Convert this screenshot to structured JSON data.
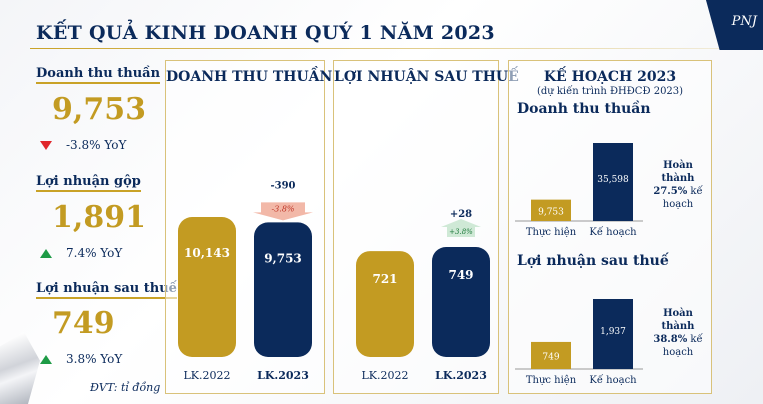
{
  "page": {
    "title": "KẾT QUẢ KINH DOANH QUÝ 1 NĂM 2023",
    "logo": "PNJ",
    "unit_note": "ĐVT: tỉ đồng"
  },
  "kpis": [
    {
      "label": "Doanh thu thuần",
      "value": "9,753",
      "change": "-3.8% YoY",
      "direction": "down"
    },
    {
      "label": "Lợi nhuận gộp",
      "value": "1,891",
      "change": "7.4% YoY",
      "direction": "up"
    },
    {
      "label": "Lợi nhuận sau thuế",
      "value": "749",
      "change": "3.8% YoY",
      "direction": "up"
    }
  ],
  "colors": {
    "navy": "#0b2a5b",
    "gold": "#c39b22",
    "down": "#e0262b",
    "up": "#1e9b46"
  },
  "chart_data": [
    {
      "type": "bar",
      "title": "DOANH THU THUẦN",
      "categories": [
        "LK.2022",
        "LK.2023"
      ],
      "values": [
        10143,
        9753
      ],
      "labels": [
        "10,143",
        "9,753"
      ],
      "colors": [
        "#c39b22",
        "#0b2a5b"
      ],
      "change_value": "-390",
      "change_pct": "-3.8%",
      "change_direction": "down"
    },
    {
      "type": "bar",
      "title": "LỢI NHUẬN SAU THUẾ",
      "categories": [
        "LK.2022",
        "LK.2023"
      ],
      "values": [
        721,
        749
      ],
      "labels": [
        "721",
        "749"
      ],
      "colors": [
        "#c39b22",
        "#0b2a5b"
      ],
      "change_value": "+28",
      "change_pct": "+3.8%",
      "change_direction": "up"
    },
    {
      "type": "bar",
      "panel_title": "KẾ HOẠCH 2023",
      "panel_subtitle": "(dự kiến trình ĐHĐCĐ 2023)",
      "title": "Doanh thu thuần",
      "categories": [
        "Thực hiện",
        "Kế hoạch"
      ],
      "values": [
        9753,
        35598
      ],
      "labels": [
        "9,753",
        "35,598"
      ],
      "colors": [
        "#c39b22",
        "#0b2a5b"
      ],
      "note_line1": "Hoàn thành",
      "note_pct": "27.5%",
      "note_line2": "kế",
      "note_line3": "hoạch"
    },
    {
      "type": "bar",
      "title": "Lợi nhuận sau thuế",
      "categories": [
        "Thực hiện",
        "Kế hoạch"
      ],
      "values": [
        749,
        1937
      ],
      "labels": [
        "749",
        "1,937"
      ],
      "colors": [
        "#c39b22",
        "#0b2a5b"
      ],
      "note_line1": "Hoàn thành",
      "note_pct": "38.8%",
      "note_line2": "kế",
      "note_line3": "hoạch"
    }
  ]
}
